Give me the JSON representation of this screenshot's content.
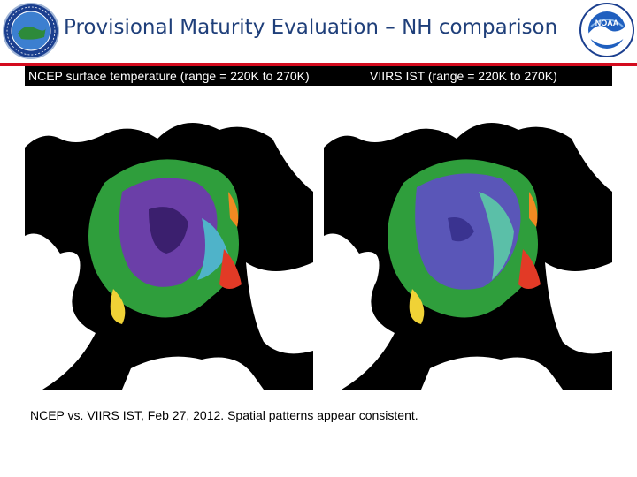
{
  "header": {
    "title": "Provisional Maturity Evaluation – NH comparison",
    "left_logo_icon": "noaa-nesdis-star-logo-icon",
    "right_logo_icon": "noaa-seal-logo-icon",
    "right_logo_text": "NOAA",
    "accent_color": "#d40b1e",
    "title_color": "#1f3f7a"
  },
  "panels": [
    {
      "label": "NCEP surface temperature (range = 220K to 270K)",
      "image_icon": "arctic-temperature-map-ncep"
    },
    {
      "label": "VIIRS IST (range = 220K to 270K)",
      "image_icon": "arctic-temperature-map-viirs"
    }
  ],
  "caption": "NCEP vs. VIIRS IST, Feb 27, 2012.  Spatial patterns appear consistent."
}
